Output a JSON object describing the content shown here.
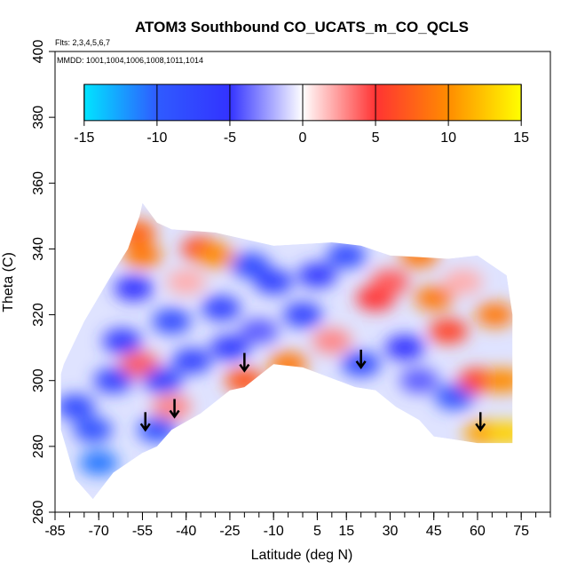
{
  "chart_data": {
    "type": "heatmap",
    "title": "ATOM3 Southbound CO_UCATS_m_CO_QCLS",
    "flights_note": "Flts: 2,3,4,5,6,7",
    "dates_note": "MMDD: 1001,1004,1006,1008,1011,1014",
    "xlabel": "Latitude (deg N)",
    "ylabel": "Theta (C)",
    "xlim": [
      -85,
      85
    ],
    "ylim": [
      260,
      400
    ],
    "x_ticks": [
      -85,
      -70,
      -55,
      -40,
      -25,
      -10,
      5,
      15,
      30,
      45,
      60,
      75
    ],
    "y_ticks": [
      260,
      280,
      300,
      320,
      340,
      360,
      380,
      400
    ],
    "colorbar": {
      "range": [
        -15,
        15
      ],
      "ticks": [
        -15,
        -10,
        -5,
        0,
        5,
        10,
        15
      ],
      "colors": [
        "#00e5ff",
        "#2f5bff",
        "#3333ff",
        "#ffffff",
        "#ff3333",
        "#ff8c00",
        "#ffff00"
      ]
    },
    "field_outline": [
      [
        -83,
        302
      ],
      [
        -82,
        305
      ],
      [
        -75,
        318
      ],
      [
        -65,
        333
      ],
      [
        -60,
        340
      ],
      [
        -56,
        350
      ],
      [
        -55,
        354
      ],
      [
        -50,
        348
      ],
      [
        -45,
        346
      ],
      [
        -30,
        345
      ],
      [
        -10,
        341
      ],
      [
        10,
        342
      ],
      [
        20,
        341
      ],
      [
        30,
        338
      ],
      [
        50,
        337
      ],
      [
        60,
        338
      ],
      [
        65,
        335
      ],
      [
        70,
        332
      ],
      [
        72,
        320
      ],
      [
        72,
        281
      ],
      [
        60,
        281
      ],
      [
        45,
        283
      ],
      [
        40,
        288
      ],
      [
        32,
        292
      ],
      [
        25,
        297
      ],
      [
        18,
        298
      ],
      [
        12,
        300
      ],
      [
        0,
        304
      ],
      [
        -10,
        305
      ],
      [
        -20,
        298
      ],
      [
        -25,
        297
      ],
      [
        -35,
        290
      ],
      [
        -45,
        285
      ],
      [
        -50,
        280
      ],
      [
        -55,
        278
      ],
      [
        -65,
        272
      ],
      [
        -72,
        264
      ],
      [
        -78,
        270
      ],
      [
        -83,
        285
      ]
    ],
    "cells": [
      {
        "lat": -78,
        "theta": 292,
        "value": -8
      },
      {
        "lat": -72,
        "theta": 285,
        "value": -9
      },
      {
        "lat": -70,
        "theta": 275,
        "value": -11
      },
      {
        "lat": -65,
        "theta": 300,
        "value": -7
      },
      {
        "lat": -62,
        "theta": 312,
        "value": -6
      },
      {
        "lat": -58,
        "theta": 328,
        "value": -5
      },
      {
        "lat": -57,
        "theta": 345,
        "value": 8
      },
      {
        "lat": -55,
        "theta": 338,
        "value": 9
      },
      {
        "lat": -56,
        "theta": 305,
        "value": 4
      },
      {
        "lat": -50,
        "theta": 285,
        "value": -9
      },
      {
        "lat": -48,
        "theta": 300,
        "value": -7
      },
      {
        "lat": -45,
        "theta": 318,
        "value": -8
      },
      {
        "lat": -45,
        "theta": 292,
        "value": 3
      },
      {
        "lat": -40,
        "theta": 330,
        "value": 2
      },
      {
        "lat": -38,
        "theta": 306,
        "value": -7
      },
      {
        "lat": -35,
        "theta": 340,
        "value": 6
      },
      {
        "lat": -30,
        "theta": 338,
        "value": 10
      },
      {
        "lat": -28,
        "theta": 322,
        "value": -7
      },
      {
        "lat": -25,
        "theta": 310,
        "value": -6
      },
      {
        "lat": -20,
        "theta": 300,
        "value": 7
      },
      {
        "lat": -18,
        "theta": 335,
        "value": -8
      },
      {
        "lat": -15,
        "theta": 315,
        "value": -4
      },
      {
        "lat": -10,
        "theta": 330,
        "value": -7
      },
      {
        "lat": -5,
        "theta": 305,
        "value": 9
      },
      {
        "lat": 0,
        "theta": 320,
        "value": -7
      },
      {
        "lat": 5,
        "theta": 332,
        "value": -6
      },
      {
        "lat": 10,
        "theta": 312,
        "value": 3
      },
      {
        "lat": 15,
        "theta": 338,
        "value": -8
      },
      {
        "lat": 20,
        "theta": 305,
        "value": -8
      },
      {
        "lat": 25,
        "theta": 325,
        "value": 5
      },
      {
        "lat": 30,
        "theta": 330,
        "value": 4
      },
      {
        "lat": 35,
        "theta": 310,
        "value": -5
      },
      {
        "lat": 40,
        "theta": 300,
        "value": -4
      },
      {
        "lat": 40,
        "theta": 338,
        "value": 9
      },
      {
        "lat": 45,
        "theta": 325,
        "value": 9
      },
      {
        "lat": 50,
        "theta": 315,
        "value": 6
      },
      {
        "lat": 52,
        "theta": 295,
        "value": -9
      },
      {
        "lat": 55,
        "theta": 330,
        "value": 2
      },
      {
        "lat": 60,
        "theta": 300,
        "value": 6
      },
      {
        "lat": 62,
        "theta": 284,
        "value": 11
      },
      {
        "lat": 66,
        "theta": 320,
        "value": 9
      },
      {
        "lat": 69,
        "theta": 300,
        "value": 10
      },
      {
        "lat": 70,
        "theta": 284,
        "value": 13
      }
    ],
    "annotations": [
      {
        "type": "arrow-down",
        "lat": -54,
        "theta": 285
      },
      {
        "type": "arrow-down",
        "lat": -44,
        "theta": 289
      },
      {
        "type": "arrow-down",
        "lat": -20,
        "theta": 303
      },
      {
        "type": "arrow-down",
        "lat": 20,
        "theta": 304
      },
      {
        "type": "arrow-down",
        "lat": 61,
        "theta": 285
      }
    ]
  }
}
